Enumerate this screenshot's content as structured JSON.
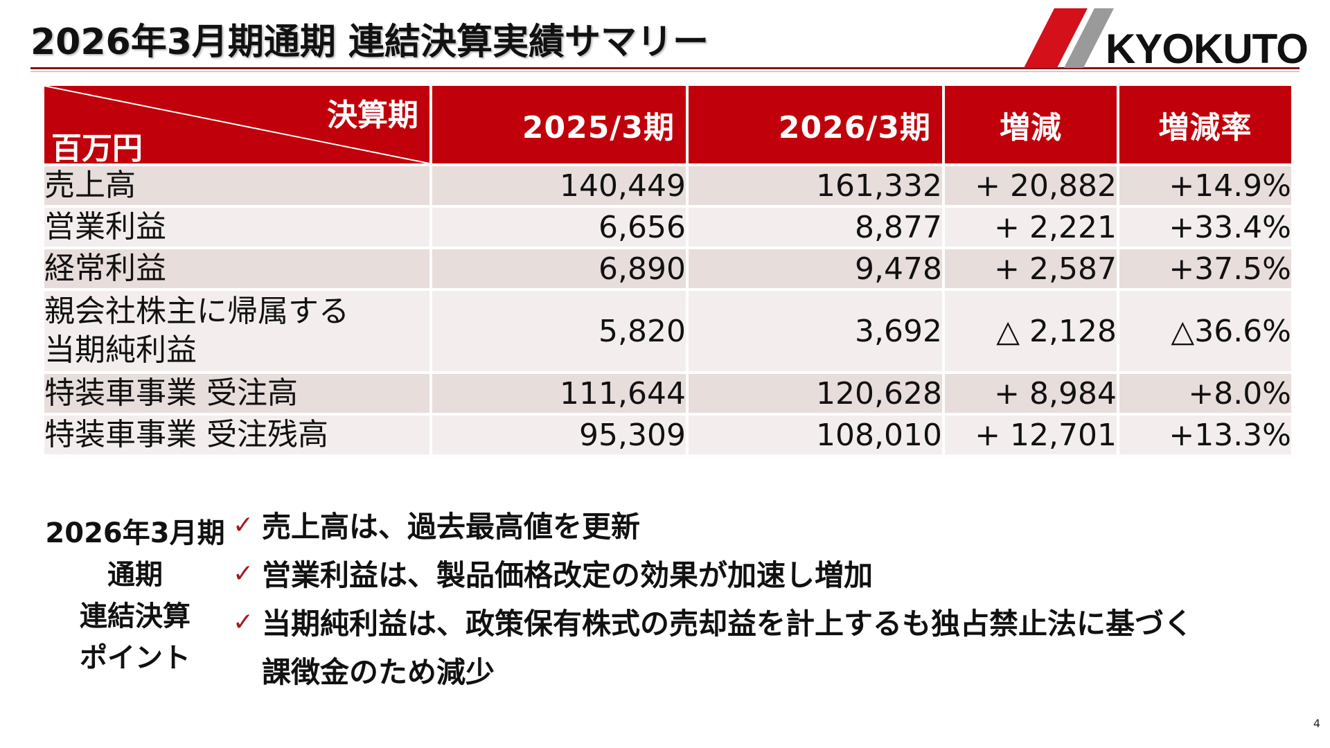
{
  "slide": {
    "title": "2026年3月期通期 連結決算実績サマリー",
    "page_number": "4"
  },
  "logo": {
    "text": "KYOKUTO",
    "accent_color": "#d4101b",
    "gray_color": "#9a9a9a"
  },
  "table": {
    "corner_top": "決算期",
    "corner_bottom": "百万円",
    "columns": [
      "2025/3期",
      "2026/3期",
      "増減",
      "増減率"
    ],
    "rows": [
      {
        "label": "売上高",
        "values": [
          "140,449",
          "161,332",
          "+ 20,882",
          "+14.9%"
        ]
      },
      {
        "label": "営業利益",
        "values": [
          "6,656",
          "8,877",
          "+ 2,221",
          "+33.4%"
        ]
      },
      {
        "label": "経常利益",
        "values": [
          "6,890",
          "9,478",
          "+ 2,587",
          "+37.5%"
        ]
      },
      {
        "label_line1": "親会社株主に帰属する",
        "label_line2": "当期純利益",
        "values": [
          "5,820",
          "3,692",
          "△ 2,128",
          "△36.6%"
        ]
      },
      {
        "label": "特装車事業 受注高",
        "values": [
          "111,644",
          "120,628",
          "+ 8,984",
          "+8.0%"
        ]
      },
      {
        "label": "特装車事業 受注残高",
        "values": [
          "95,309",
          "108,010",
          "+ 12,701",
          "+13.3%"
        ]
      }
    ],
    "header_color": "#c0000a"
  },
  "points": {
    "label_lines": [
      "2026年3月期",
      "通期",
      "連結決算",
      "ポイント"
    ],
    "check_mark": "✓",
    "items": [
      "売上高は、過去最高値を更新",
      "営業利益は、製品価格改定の効果が加速し増加",
      "当期純利益は、政策保有株式の売却益を計上するも独占禁止法に基づく",
      "課徴金のため減少"
    ]
  }
}
